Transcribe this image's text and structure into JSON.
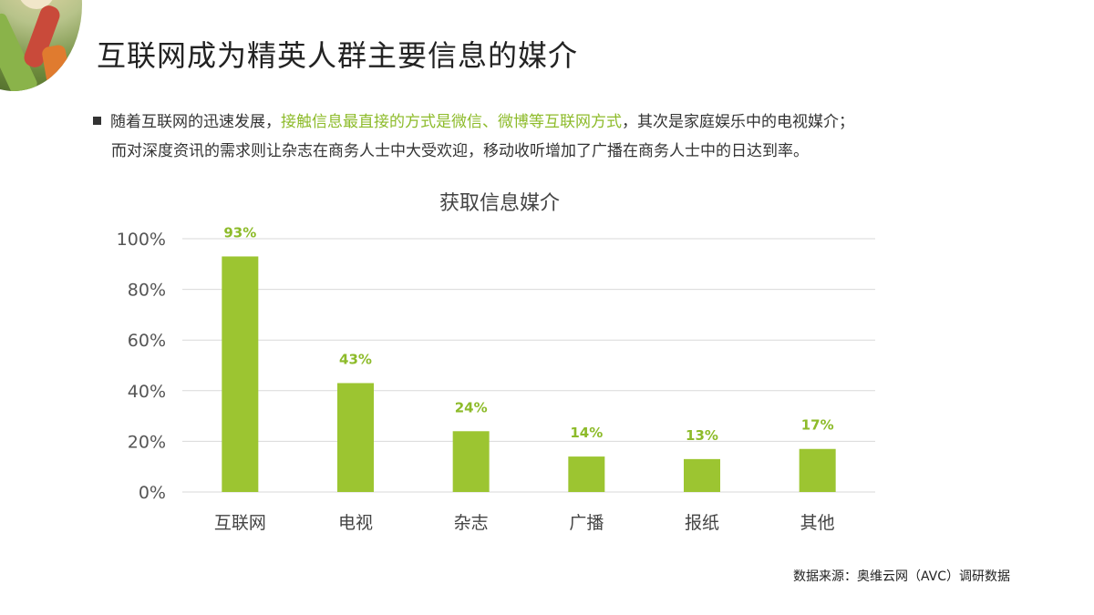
{
  "title": "互联网成为精英人群主要信息的媒介",
  "bullet": {
    "part1": "随着互联网的迅速发展，",
    "highlight": "接触信息最直接的方式是微信、微博等互联网方式",
    "part2": "，其次是家庭娱乐中的电视媒介；",
    "line2": "而对深度资讯的需求则让杂志在商务人士中大受欢迎，移动收听增加了广播在商务人士中的日达到率。"
  },
  "source": "数据来源：奥维云网（AVC）调研数据",
  "colors": {
    "bar": "#9cc531",
    "label": "#8dbb2a",
    "grid": "#d9d9d9"
  },
  "chart_data": {
    "type": "bar",
    "title": "获取信息媒介",
    "categories": [
      "互联网",
      "电视",
      "杂志",
      "广播",
      "报纸",
      "其他"
    ],
    "values": [
      93,
      43,
      24,
      14,
      13,
      17
    ],
    "value_labels": [
      "93%",
      "43%",
      "24%",
      "14%",
      "13%",
      "17%"
    ],
    "yticks": [
      "0%",
      "20%",
      "40%",
      "60%",
      "80%",
      "100%"
    ],
    "ytick_values": [
      0,
      20,
      40,
      60,
      80,
      100
    ],
    "ylim": [
      0,
      100
    ],
    "grid": true
  }
}
